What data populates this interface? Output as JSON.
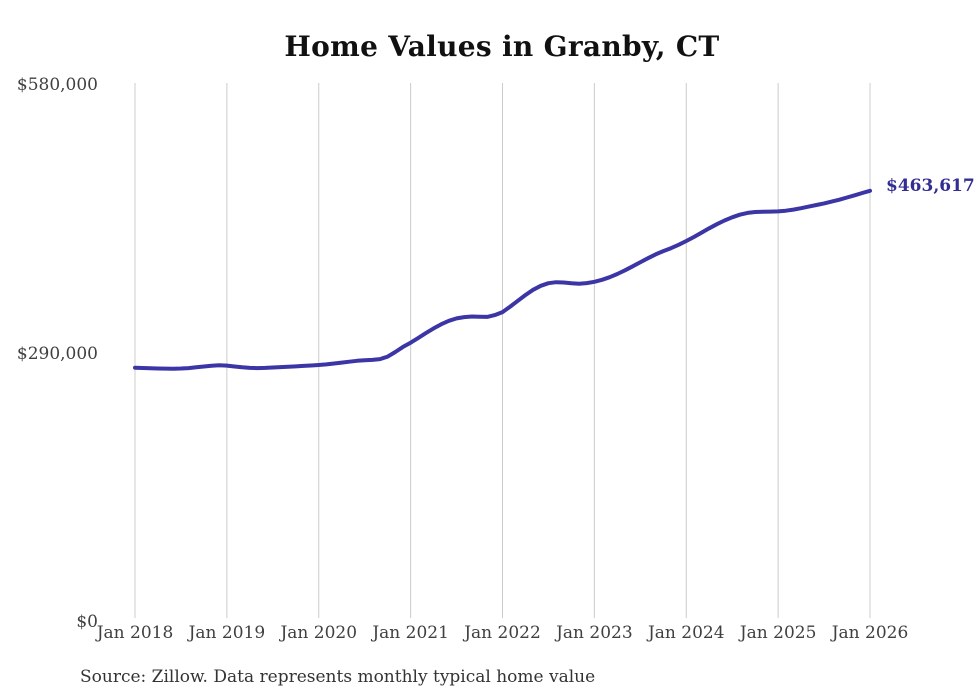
{
  "chart_data": {
    "type": "line",
    "title": "Home Values in Granby, CT",
    "source_note": "Source: Zillow. Data represents monthly typical home value",
    "end_label": "$463,617",
    "final_value": 463617,
    "frequency": "monthly",
    "x_start": "2018-01",
    "x_end": "2026-01",
    "x_tick_labels": [
      "Jan 2018",
      "Jan 2019",
      "Jan 2020",
      "Jan 2021",
      "Jan 2022",
      "Jan 2023",
      "Jan 2024",
      "Jan 2025",
      "Jan 2026"
    ],
    "y_ticks": [
      {
        "value": 580000,
        "label": "$580,000"
      },
      {
        "value": 290000,
        "label": "$290,000"
      },
      {
        "value": 0,
        "label": "$0"
      }
    ],
    "ylim": [
      0,
      580000
    ],
    "grid": "vertical-only",
    "legend": "none",
    "series": [
      {
        "name": "Typical home value",
        "values": [
          272500,
          272200,
          271900,
          271600,
          271500,
          271400,
          271600,
          272100,
          272900,
          273800,
          274700,
          275200,
          274800,
          273800,
          272900,
          272300,
          272100,
          272300,
          272700,
          273100,
          273500,
          273900,
          274400,
          274900,
          275400,
          276100,
          277000,
          278000,
          279000,
          280000,
          280600,
          280900,
          281800,
          284500,
          289500,
          295000,
          299500,
          304700,
          309900,
          314900,
          319500,
          323200,
          325800,
          327200,
          327800,
          327600,
          327400,
          329300,
          332600,
          338500,
          344800,
          351000,
          356600,
          361000,
          363800,
          364800,
          364500,
          363700,
          363200,
          363900,
          365300,
          367400,
          370200,
          373700,
          377700,
          382000,
          386400,
          390800,
          394900,
          398400,
          401600,
          405200,
          409300,
          413700,
          418400,
          423100,
          427500,
          431500,
          435000,
          437800,
          439700,
          440700,
          441000,
          441100,
          441300,
          442100,
          443300,
          444800,
          446500,
          448200,
          450000,
          451900,
          454000,
          456300,
          458700,
          461200,
          463617
        ]
      }
    ],
    "colors": {
      "line": "#3b35a5",
      "end_label": "#332e91",
      "grid": "#cccccc",
      "axis_text": "#404040",
      "source_text": "#333333",
      "background": "#ffffff"
    }
  }
}
